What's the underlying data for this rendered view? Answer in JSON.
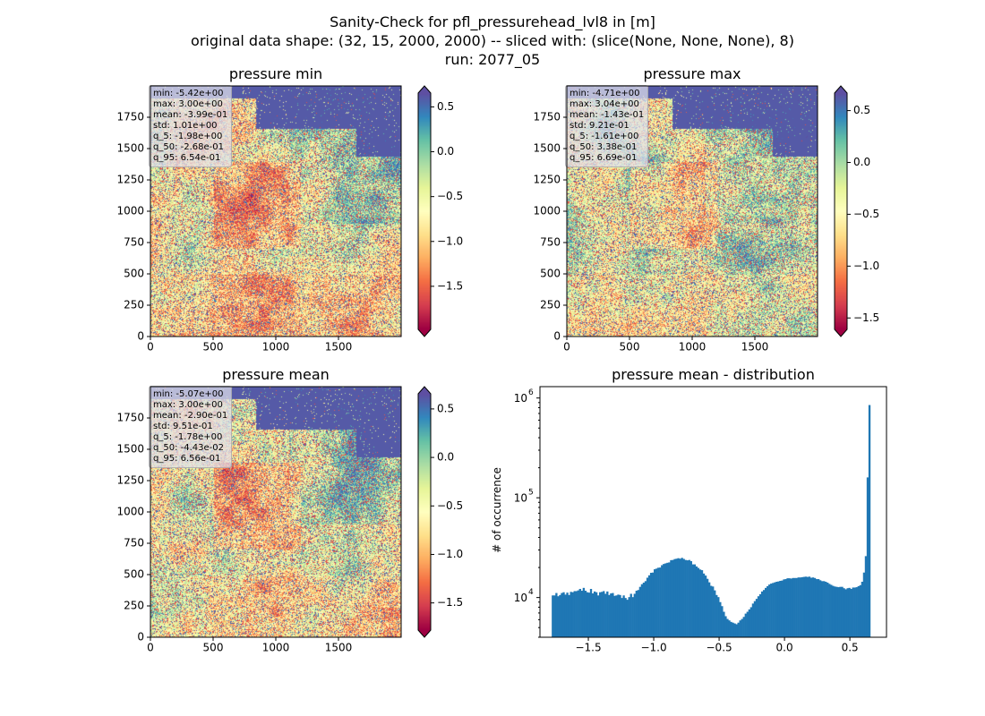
{
  "figure": {
    "title_lines": [
      "Sanity-Check for pfl_pressurehead_lvl8 in [m]",
      "original data shape: (32, 15, 2000, 2000) -- sliced with: (slice(None, None, None), 8)",
      "run: 2077_05"
    ]
  },
  "colors": {
    "cmap": [
      "#9e0142",
      "#d53e4f",
      "#f46d43",
      "#fdae61",
      "#fee08b",
      "#ffffbf",
      "#e6f598",
      "#abdda4",
      "#66c2a5",
      "#3288bd",
      "#5e4fa2"
    ],
    "hist_bar": "#1f77b4"
  },
  "chart_data": [
    {
      "type": "heatmap",
      "title": "pressure min",
      "xlim": [
        0,
        2000
      ],
      "ylim": [
        0,
        2000
      ],
      "xticks": [
        "0",
        "500",
        "1000",
        "1500"
      ],
      "yticks": [
        "0",
        "250",
        "500",
        "750",
        "1000",
        "1250",
        "1500",
        "1750"
      ],
      "stats": [
        "min: -5.42e+00",
        "max: 3.00e+00",
        "mean: -3.99e-01",
        "std: 1.01e+00",
        "q_5: -1.98e+00",
        "q_50: -2.68e-01",
        "q_95: 6.54e-01"
      ],
      "colorbar": {
        "range": [
          -1.98,
          0.654
        ],
        "ticks": [
          0.5,
          0.0,
          -0.5,
          -1.0,
          -1.5
        ],
        "tick_labels": [
          "0.5",
          "0.0",
          "−0.5",
          "−1.0",
          "−1.5"
        ]
      }
    },
    {
      "type": "heatmap",
      "title": "pressure max",
      "xlim": [
        0,
        2000
      ],
      "ylim": [
        0,
        2000
      ],
      "xticks": [
        "0",
        "500",
        "1000",
        "1500"
      ],
      "yticks": [
        "0",
        "250",
        "500",
        "750",
        "1000",
        "1250",
        "1500",
        "1750"
      ],
      "stats": [
        "min: -4.71e+00",
        "max: 3.04e+00",
        "mean: -1.43e-01",
        "std: 9.21e-01",
        "q_5: -1.61e+00",
        "q_50: 3.38e-01",
        "q_95: 6.69e-01"
      ],
      "colorbar": {
        "range": [
          -1.61,
          0.669
        ],
        "ticks": [
          0.5,
          0.0,
          -0.5,
          -1.0,
          -1.5
        ],
        "tick_labels": [
          "0.5",
          "0.0",
          "−0.5",
          "−1.0",
          "−1.5"
        ]
      }
    },
    {
      "type": "heatmap",
      "title": "pressure mean",
      "xlim": [
        0,
        2000
      ],
      "ylim": [
        0,
        2000
      ],
      "xticks": [
        "0",
        "500",
        "1000",
        "1500"
      ],
      "yticks": [
        "0",
        "250",
        "500",
        "750",
        "1000",
        "1250",
        "1500",
        "1750"
      ],
      "stats": [
        "min: -5.07e+00",
        "max: 3.00e+00",
        "mean: -2.90e-01",
        "std: 9.51e-01",
        "q_5: -1.78e+00",
        "q_50: -4.43e-02",
        "q_95: 6.56e-01"
      ],
      "colorbar": {
        "range": [
          -1.78,
          0.656
        ],
        "ticks": [
          0.5,
          0.0,
          -0.5,
          -1.0,
          -1.5
        ],
        "tick_labels": [
          "0.5",
          "0.0",
          "−0.5",
          "−1.0",
          "−1.5"
        ]
      }
    },
    {
      "type": "bar",
      "title": "pressure mean - distribution",
      "ylabel": "# of occurrence",
      "yscale": "log",
      "xlim": [
        -1.87,
        0.78
      ],
      "ylim": [
        4000,
        1300000
      ],
      "xticks": [
        -1.5,
        -1.0,
        -0.5,
        0.0,
        0.5
      ],
      "xtick_labels": [
        "−1.5",
        "−1.0",
        "−0.5",
        "0.0",
        "0.5"
      ],
      "yticks": [
        10000,
        100000,
        1000000
      ],
      "ytick_labels": [
        "10",
        "10",
        "10"
      ],
      "ytick_exponents": [
        "4",
        "5",
        "6"
      ],
      "bin_range": [
        -1.78,
        0.656
      ],
      "values": [
        10500,
        10500,
        11100,
        10300,
        10600,
        11100,
        11300,
        10700,
        11200,
        10600,
        11400,
        11300,
        11600,
        11600,
        11800,
        12200,
        11700,
        12500,
        11700,
        11300,
        11200,
        12200,
        11000,
        11500,
        11300,
        10500,
        11300,
        11400,
        11600,
        10900,
        11500,
        10600,
        11000,
        11100,
        10400,
        10500,
        10700,
        10600,
        9900,
        10500,
        9900,
        9500,
        10100,
        10900,
        10100,
        10900,
        11700,
        11900,
        12800,
        13600,
        14100,
        14600,
        15800,
        16700,
        17700,
        17800,
        19200,
        19500,
        19900,
        20000,
        21100,
        21700,
        22000,
        22300,
        22500,
        23700,
        23800,
        24300,
        24500,
        24800,
        24500,
        25000,
        24400,
        23800,
        23600,
        23800,
        23200,
        21500,
        21500,
        20500,
        19800,
        19100,
        18800,
        17400,
        16600,
        15400,
        14200,
        13100,
        12900,
        11800,
        10600,
        10100,
        9000,
        8200,
        7200,
        6500,
        6100,
        5900,
        5700,
        5600,
        5500,
        5400,
        5600,
        5900,
        6100,
        6400,
        6900,
        7200,
        7600,
        8000,
        8700,
        9200,
        9700,
        10300,
        10800,
        11500,
        11900,
        12500,
        13000,
        13500,
        13800,
        14000,
        14200,
        14400,
        14500,
        14700,
        14800,
        15200,
        15300,
        15600,
        15600,
        15500,
        15700,
        15700,
        15700,
        15900,
        15900,
        16000,
        16100,
        16200,
        16100,
        16200,
        15800,
        15900,
        15700,
        15300,
        15300,
        14900,
        14600,
        14600,
        14400,
        14100,
        13700,
        13400,
        13100,
        12900,
        12800,
        12700,
        12800,
        12800,
        12400,
        12100,
        12400,
        12500,
        12200,
        12600,
        12600,
        12700,
        13000,
        13300,
        14400,
        17800,
        26000,
        160000,
        850000
      ]
    }
  ]
}
